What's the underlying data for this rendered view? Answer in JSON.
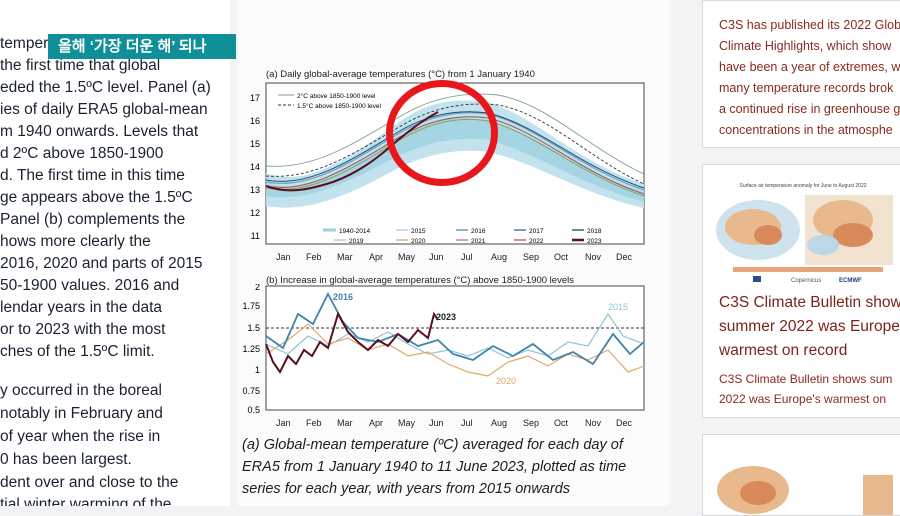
{
  "banner": {
    "text": "올해 ‘가장 더운 해’ 되나",
    "color": "#0f8f97"
  },
  "left_article": {
    "paragraph1": [
      "temper",
      "the first time that global",
      "eded the 1.5ºC level. Panel (a)",
      "ies of daily ERA5 global-mean",
      "m 1940 onwards. Levels that",
      "d 2ºC above 1850-1900",
      "d. The first time in this time",
      "ge appears above the 1.5ºC",
      " Panel (b) complements the",
      "hows more clearly the",
      "2016, 2020 and parts of 2015",
      "50-1900 values. 2016 and",
      "lendar years in the data",
      "or to 2023 with the most",
      "ches of the 1.5ºC limit."
    ],
    "paragraph2": [
      "y occurred in the boreal",
      " notably in February and",
      " of year when the rise in",
      "0 has been largest.",
      "dent over and close to the",
      "tial winter warming of the"
    ]
  },
  "figure": {
    "panel_a_title": "(a) Daily global-average temperatures (°C) from 1 January 1940",
    "panel_a_legend_threshold": [
      "2°C above 1850-1900 level",
      "1.5°C above 1850-1900 level"
    ],
    "panel_a_yticks": [
      "17",
      "16",
      "15",
      "14",
      "13",
      "12",
      "11"
    ],
    "months": [
      "Jan",
      "Feb",
      "Mar",
      "Apr",
      "May",
      "Jun",
      "Jul",
      "Aug",
      "Sep",
      "Oct",
      "Nov",
      "Dec"
    ],
    "legend_years": [
      "1940-2014",
      "2015",
      "2016",
      "2017",
      "2018",
      "2019",
      "2020",
      "2021",
      "2022",
      "2023"
    ],
    "panel_b_title": "(b) Increase in global-average temperatures (°C) above 1850-1900 levels",
    "panel_b_yticks": [
      "2",
      "1.75",
      "1.5",
      "1.25",
      "1",
      "0.75",
      "0.5"
    ],
    "panel_b_labels": {
      "y2016": "2016",
      "y2015": "2015",
      "y2023": "2023",
      "y2020": "2020"
    }
  },
  "caption": [
    "(a) Global-mean temperature (ºC) averaged for each day of",
    "ERA5 from 1 January 1940 to 11 June 2023, plotted as time",
    "series for each year, with years from 2015 onwards"
  ],
  "right_sidebar": {
    "card1_lines": [
      "C3S has published its 2022 Glob",
      "Climate Highlights, which show",
      "have been a year of extremes, wi",
      "many temperature records brok",
      "a continued rise in greenhouse g",
      "concentrations in the atmosphe"
    ],
    "card2_map_caption": "Surface air temperature anomaly for June to August 2022",
    "card2_logos": [
      "Copernicus",
      "ECMWF"
    ],
    "card2_headline": [
      "C3S Climate Bulletin show",
      "summer 2022 was Europe",
      "warmest on record"
    ],
    "card2_summary": [
      "C3S Climate Bulletin shows sum",
      "2022 was Europe's warmest on"
    ]
  },
  "colors": {
    "accent_red": "#e8171c",
    "link_red": "#8a2a1f",
    "series_2023": "#5a0f1e"
  }
}
